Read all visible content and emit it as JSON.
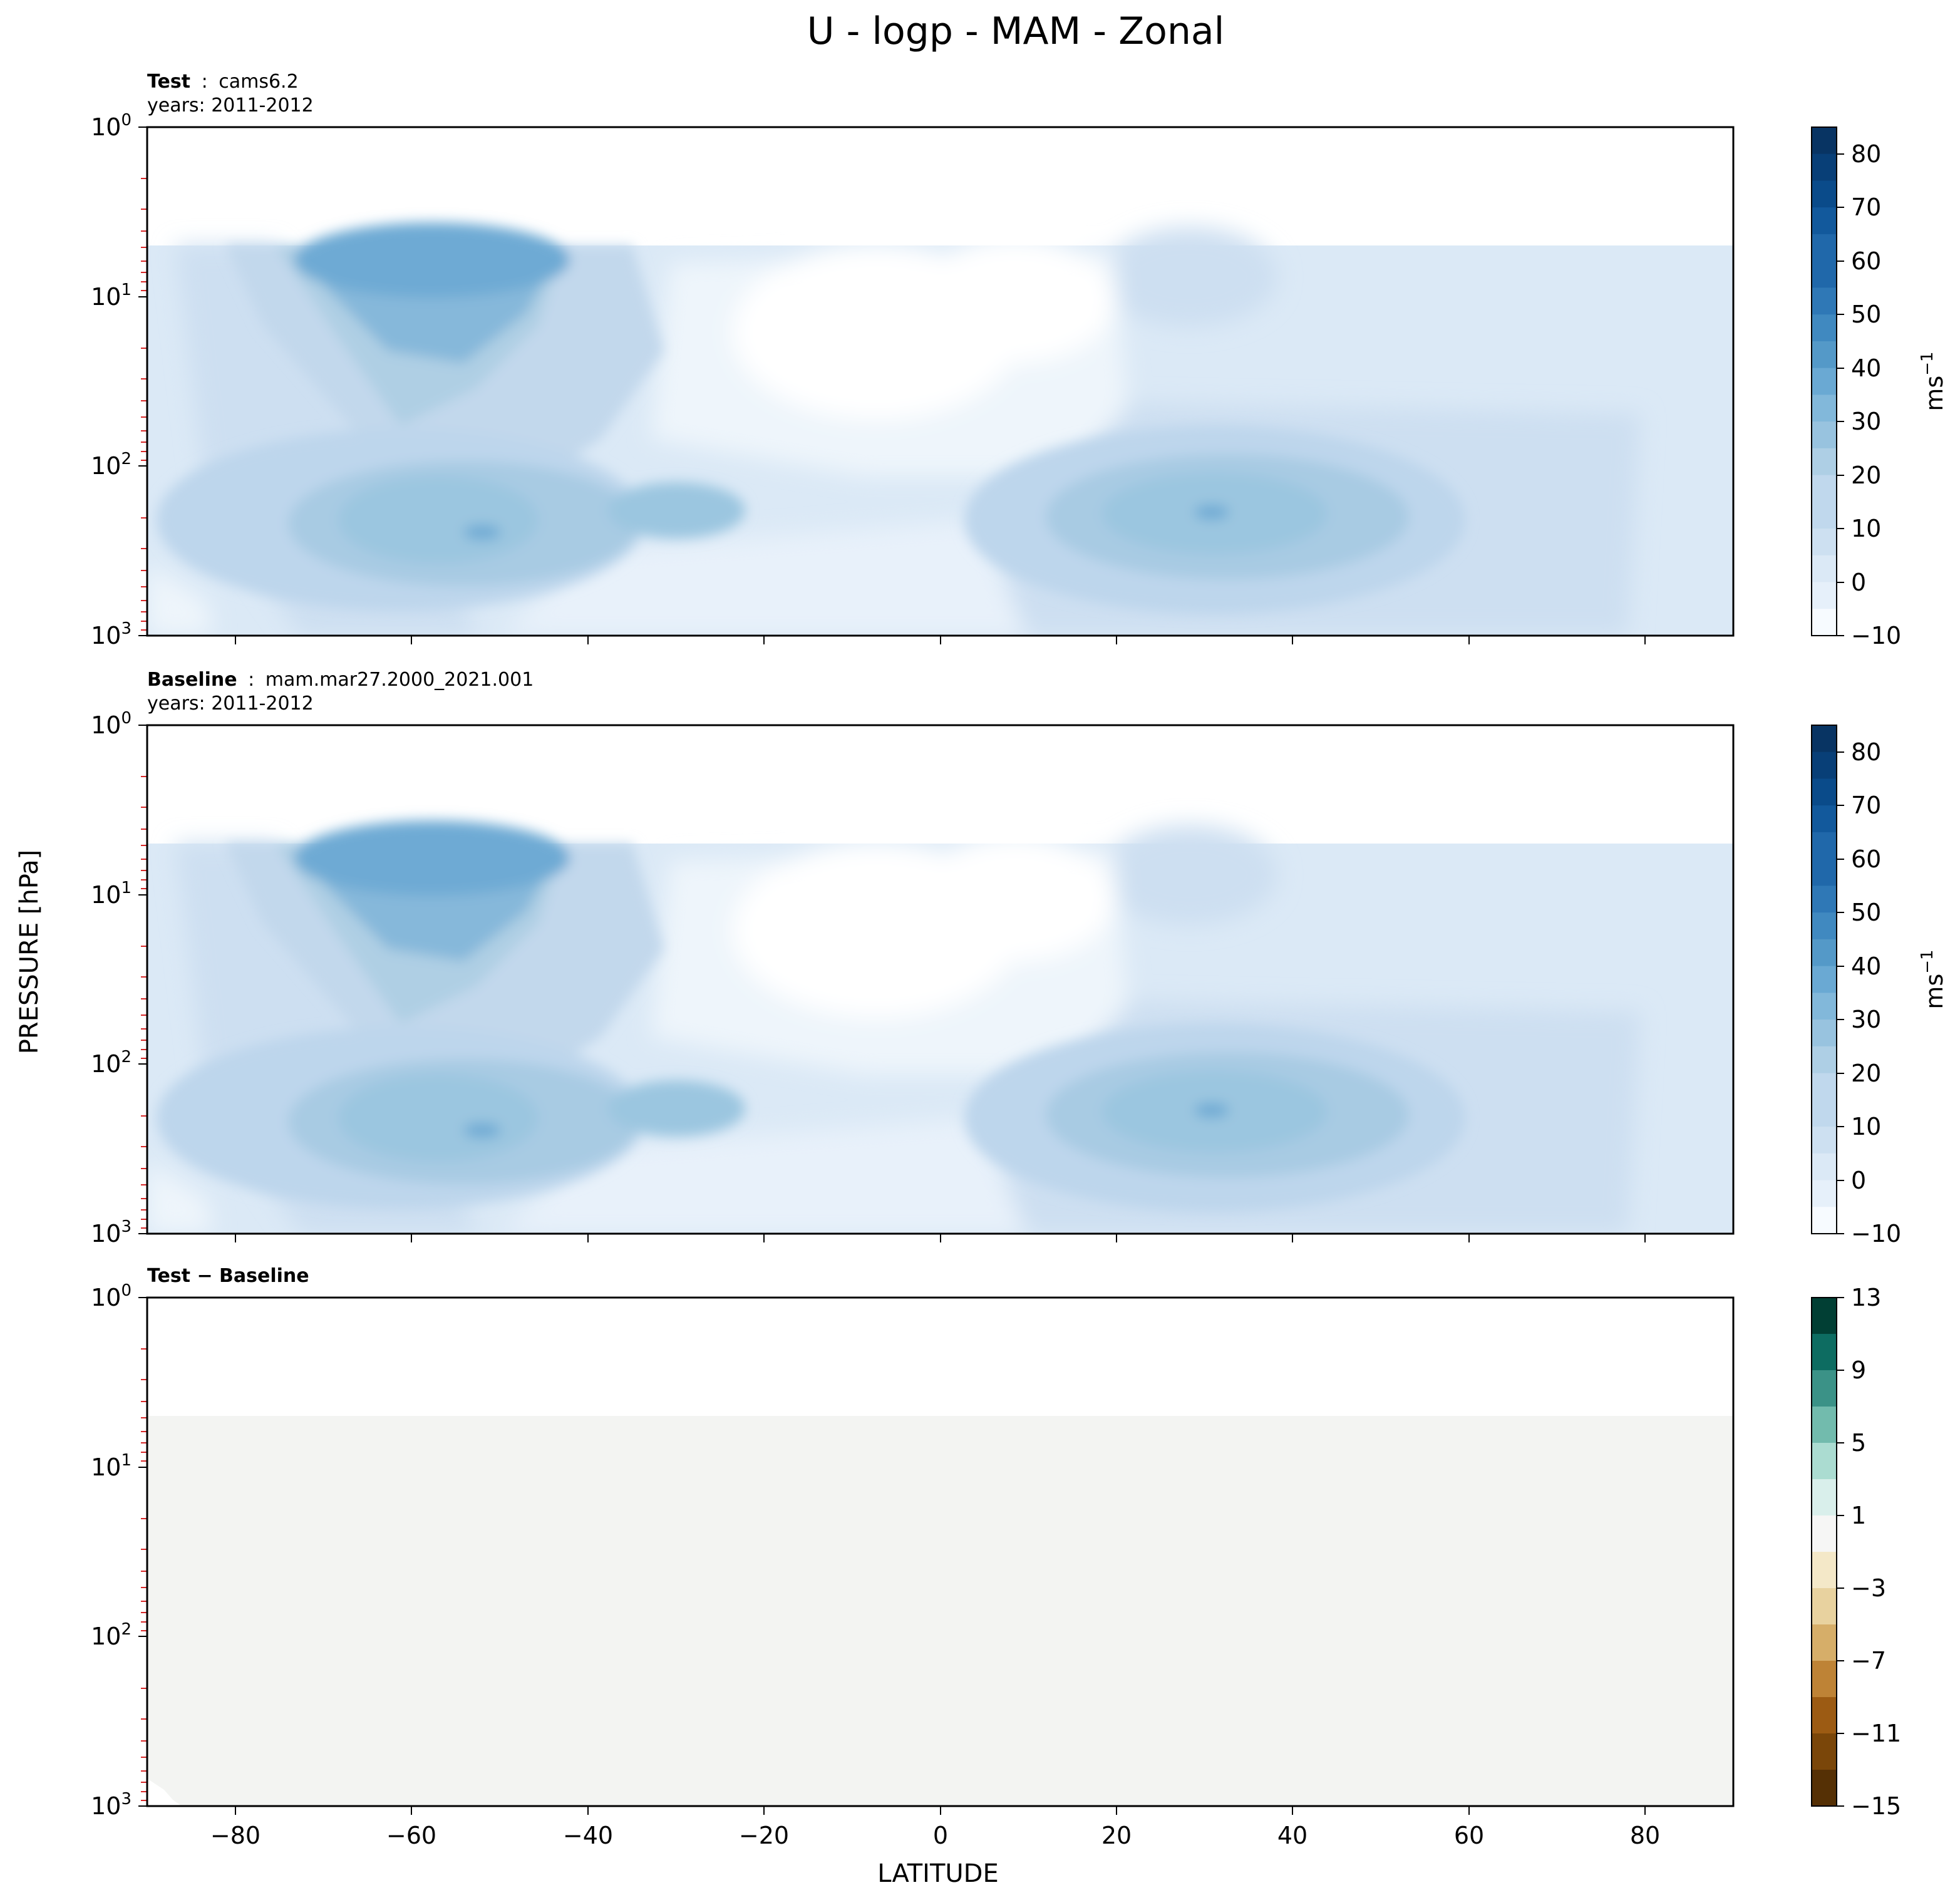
{
  "figure": {
    "title": "U - logp - MAM - Zonal",
    "ylabel": "PRESSURE [hPa]",
    "xlabel": "LATITUDE",
    "x_ticks": [
      "−80",
      "−60",
      "−40",
      "−20",
      "0",
      "20",
      "40",
      "60",
      "80"
    ],
    "y_ticks": [
      {
        "base": "10",
        "exp": "0"
      },
      {
        "base": "10",
        "exp": "1"
      },
      {
        "base": "10",
        "exp": "2"
      },
      {
        "base": "10",
        "exp": "3"
      }
    ]
  },
  "panels": [
    {
      "header_bold": "Test",
      "header_sep": ":",
      "header_value": "cams6.2",
      "years": "years: 2011-2012",
      "colorbar": {
        "unit_base": "ms",
        "unit_exp": "−1",
        "ticks": [
          "−10",
          "0",
          "10",
          "20",
          "30",
          "40",
          "50",
          "60",
          "70",
          "80"
        ]
      }
    },
    {
      "header_bold": "Baseline",
      "header_sep": ":",
      "header_value": "mam.mar27.2000_2021.001",
      "years": "years: 2011-2012",
      "colorbar": {
        "unit_base": "ms",
        "unit_exp": "−1",
        "ticks": [
          "−10",
          "0",
          "10",
          "20",
          "30",
          "40",
          "50",
          "60",
          "70",
          "80"
        ]
      }
    },
    {
      "header_bold": "Test − Baseline",
      "header_sep": "",
      "header_value": "",
      "years": "",
      "colorbar": {
        "unit_base": "",
        "unit_exp": "",
        "ticks": [
          "−15",
          "−11",
          "−7",
          "−3",
          "1",
          "5",
          "9",
          "13"
        ]
      }
    }
  ],
  "chart_data": [
    {
      "type": "heatmap",
      "title": "Test : cams6.2",
      "xlim": [
        -90,
        90
      ],
      "ylim": [
        1000,
        1
      ],
      "yscale": "log",
      "z_levels": [
        -10,
        -5,
        0,
        5,
        10,
        15,
        20,
        25,
        30,
        35,
        40,
        45,
        50,
        55,
        60,
        65,
        70,
        75,
        80,
        85
      ],
      "colormap": "Blues",
      "data_top_hPa": 5,
      "features": [
        {
          "name": "SH subtropical jet",
          "lat": -53,
          "p_hPa": 250,
          "value": 32
        },
        {
          "name": "SH subtropical jet secondary",
          "lat": -28,
          "p_hPa": 200,
          "value": 28
        },
        {
          "name": "NH subtropical jet",
          "lat": 31,
          "p_hPa": 200,
          "value": 32
        },
        {
          "name": "SH polar night jet",
          "lat": -60,
          "p_hPa": 5,
          "value": 40
        },
        {
          "name": "Equatorial easterly minimum",
          "lat": 0,
          "p_hPa": 15,
          "value": -10
        }
      ]
    },
    {
      "type": "heatmap",
      "title": "Baseline : mam.mar27.2000_2021.001",
      "xlim": [
        -90,
        90
      ],
      "ylim": [
        1000,
        1
      ],
      "yscale": "log",
      "z_levels": [
        -10,
        -5,
        0,
        5,
        10,
        15,
        20,
        25,
        30,
        35,
        40,
        45,
        50,
        55,
        60,
        65,
        70,
        75,
        80,
        85
      ],
      "colormap": "Blues",
      "data_top_hPa": 5,
      "features": [
        {
          "name": "SH subtropical jet",
          "lat": -53,
          "p_hPa": 250,
          "value": 32
        },
        {
          "name": "SH subtropical jet secondary",
          "lat": -28,
          "p_hPa": 200,
          "value": 28
        },
        {
          "name": "NH subtropical jet",
          "lat": 31,
          "p_hPa": 200,
          "value": 32
        },
        {
          "name": "SH polar night jet",
          "lat": -60,
          "p_hPa": 5,
          "value": 40
        },
        {
          "name": "Equatorial easterly minimum",
          "lat": 0,
          "p_hPa": 15,
          "value": -10
        }
      ]
    },
    {
      "type": "heatmap",
      "title": "Test − Baseline",
      "xlim": [
        -90,
        90
      ],
      "ylim": [
        1000,
        1
      ],
      "yscale": "log",
      "z_levels": [
        -15,
        -13,
        -11,
        -9,
        -7,
        -5,
        -3,
        -1,
        1,
        3,
        5,
        7,
        9,
        11,
        13
      ],
      "colormap": "BrBG",
      "data_top_hPa": 5,
      "uniform_value": 0
    }
  ]
}
